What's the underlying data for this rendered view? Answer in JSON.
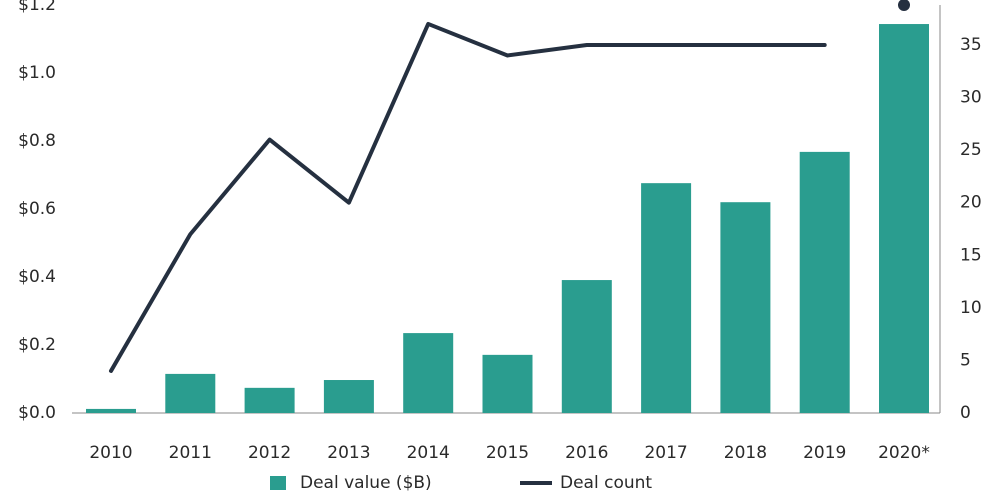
{
  "chart_data": {
    "type": "bar-line",
    "categories": [
      "2010",
      "2011",
      "2012",
      "2013",
      "2014",
      "2015",
      "2016",
      "2017",
      "2018",
      "2019",
      "2020*"
    ],
    "series": [
      {
        "name": "Deal value ($B)",
        "color": "#2a9d8f",
        "values": [
          0.012,
          0.115,
          0.074,
          0.097,
          0.235,
          0.171,
          0.391,
          0.676,
          0.62,
          0.768,
          1.144
        ]
      },
      {
        "name": "Deal count",
        "color": "#253040",
        "axis": "y2",
        "values": [
          4,
          17,
          26,
          20,
          37,
          34,
          35,
          35,
          35,
          35,
          38.8
        ]
      }
    ],
    "ylim": [
      0,
      1.2
    ],
    "yticks": [
      {
        "value": 0,
        "label": "$0.0"
      },
      {
        "value": 0.2,
        "label": "$0.2"
      },
      {
        "value": 0.4,
        "label": "$0.4"
      },
      {
        "value": 0.6,
        "label": "$0.6"
      },
      {
        "value": 0.8,
        "label": "$0.8"
      },
      {
        "value": 1,
        "label": "$1.0"
      },
      {
        "value": 1.2,
        "label": "$1.2"
      }
    ],
    "y2lim": [
      0,
      38.8
    ],
    "y2ticks": [
      0,
      5,
      10,
      15,
      20,
      25,
      30,
      35
    ]
  }
}
